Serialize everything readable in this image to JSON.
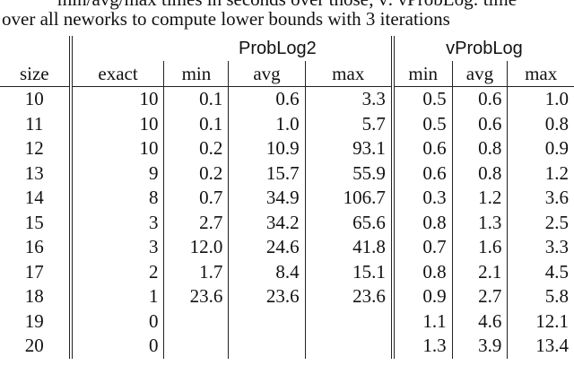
{
  "caption": {
    "line1": "min/avg/max times in seconds over those; v: vProbLog: time",
    "line2": "over all neworks to compute lower bounds with 3 iterations"
  },
  "groups": {
    "problog2": "ProbLog2",
    "vproblog": "vProbLog"
  },
  "columns": [
    "size",
    "exact",
    "min",
    "avg",
    "max",
    "min",
    "avg",
    "max"
  ],
  "rows": [
    [
      "10",
      "10",
      "0.1",
      "0.6",
      "3.3",
      "0.5",
      "0.6",
      "1.0"
    ],
    [
      "11",
      "10",
      "0.1",
      "1.0",
      "5.7",
      "0.5",
      "0.6",
      "0.8"
    ],
    [
      "12",
      "10",
      "0.2",
      "10.9",
      "93.1",
      "0.6",
      "0.8",
      "0.9"
    ],
    [
      "13",
      "9",
      "0.2",
      "15.7",
      "55.9",
      "0.6",
      "0.8",
      "1.2"
    ],
    [
      "14",
      "8",
      "0.7",
      "34.9",
      "106.7",
      "0.3",
      "1.2",
      "3.6"
    ],
    [
      "15",
      "3",
      "2.7",
      "34.2",
      "65.6",
      "0.8",
      "1.3",
      "2.5"
    ],
    [
      "16",
      "3",
      "12.0",
      "24.6",
      "41.8",
      "0.7",
      "1.6",
      "3.3"
    ],
    [
      "17",
      "2",
      "1.7",
      "8.4",
      "15.1",
      "0.8",
      "2.1",
      "4.5"
    ],
    [
      "18",
      "1",
      "23.6",
      "23.6",
      "23.6",
      "0.9",
      "2.7",
      "5.8"
    ],
    [
      "19",
      "0",
      "",
      "",
      "",
      "1.1",
      "4.6",
      "12.1"
    ],
    [
      "20",
      "0",
      "",
      "",
      "",
      "1.3",
      "3.9",
      "13.4"
    ]
  ]
}
